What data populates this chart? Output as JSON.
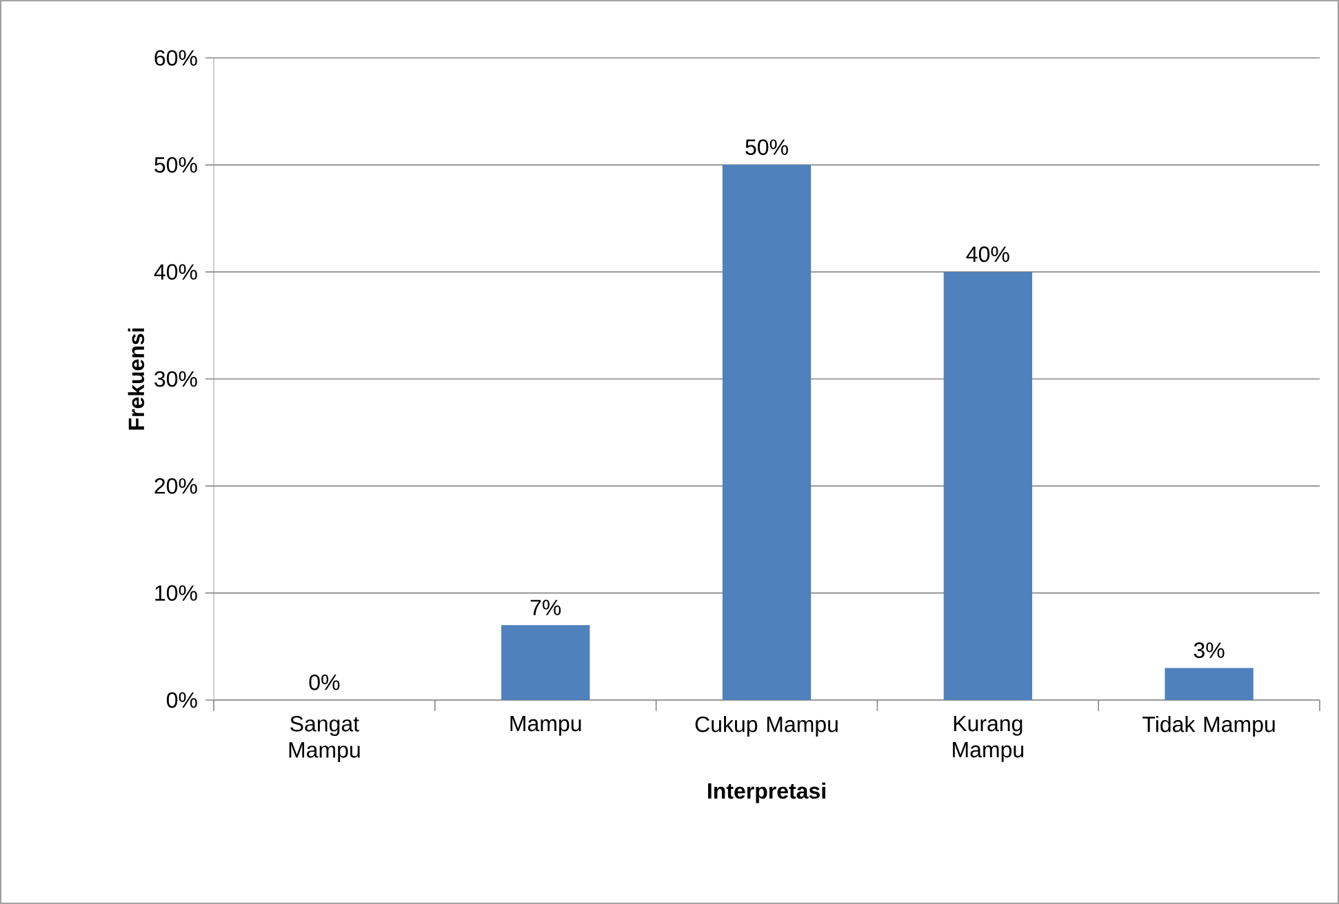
{
  "chart_data": {
    "type": "bar",
    "xlabel": "Interpretasi",
    "ylabel": "Frekuensi",
    "categories": [
      "Sangat Mampu",
      "Mampu",
      "Cukup Mampu",
      "Kurang Mampu",
      "Tidak Mampu"
    ],
    "values": [
      0,
      7,
      50,
      40,
      3
    ],
    "value_labels": [
      "0%",
      "7%",
      "50%",
      "40%",
      "3%"
    ],
    "color": "#4f81bd",
    "ylim": [
      0,
      60
    ],
    "yticks": [
      {
        "value": 0,
        "label": "0%"
      },
      {
        "value": 10,
        "label": "10%"
      },
      {
        "value": 20,
        "label": "20%"
      },
      {
        "value": 30,
        "label": "30%"
      },
      {
        "value": 40,
        "label": "40%"
      },
      {
        "value": 50,
        "label": "50%"
      },
      {
        "value": 60,
        "label": "60%"
      }
    ],
    "grid": "y"
  }
}
